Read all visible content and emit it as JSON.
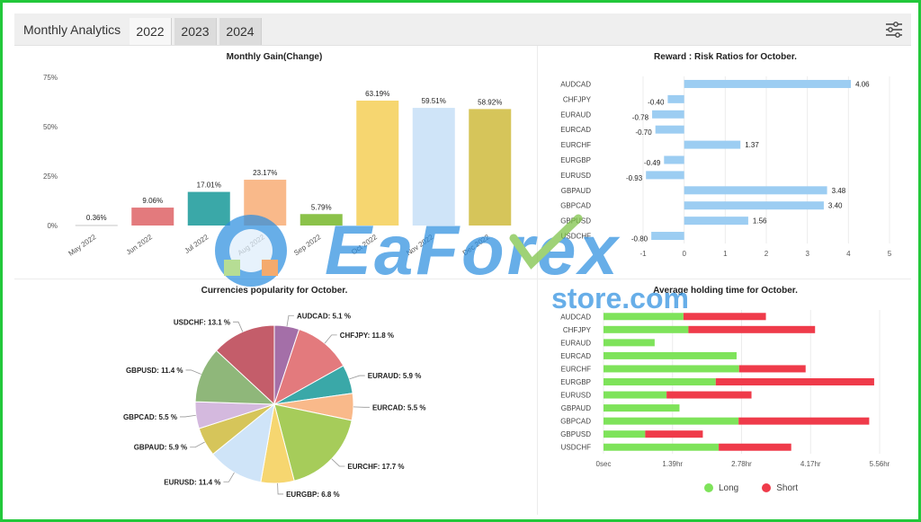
{
  "header": {
    "title": "Monthly Analytics",
    "tabs": [
      {
        "label": "2022",
        "active": true
      },
      {
        "label": "2023",
        "active": false
      },
      {
        "label": "2024",
        "active": false
      }
    ],
    "filter_icon": "sliders-icon"
  },
  "watermark": {
    "brand": "EaForex",
    "sub": "store.com"
  },
  "legend": {
    "long_label": "Long",
    "short_label": "Short",
    "long_color": "#7ee35a",
    "short_color": "#ef3b4a"
  },
  "chart_data": [
    {
      "type": "bar",
      "title": "Monthly Gain(Change)",
      "categories": [
        "May 2022",
        "Jun 2022",
        "Jul 2022",
        "Aug 2022",
        "Sep 2022",
        "Oct 2022",
        "Nov 2022",
        "Dec 2022"
      ],
      "values": [
        0.36,
        9.06,
        17.01,
        23.17,
        5.79,
        63.19,
        59.51,
        58.92
      ],
      "labels": [
        "0.36%",
        "9.06%",
        "17.01%",
        "23.17%",
        "5.79%",
        "63.19%",
        "59.51%",
        "58.92%"
      ],
      "colors": [
        "#d8d8d8",
        "#e37a7d",
        "#3aa8a8",
        "#f9b98a",
        "#8bc24a",
        "#f6d670",
        "#cfe4f8",
        "#d6c55a"
      ],
      "yticks": [
        "0%",
        "25%",
        "50%",
        "75%"
      ],
      "ylim": [
        0,
        75
      ],
      "grid": false
    },
    {
      "type": "bar",
      "orientation": "horizontal",
      "title": "Reward : Risk Ratios for October.",
      "categories": [
        "AUDCAD",
        "CHFJPY",
        "EURAUD",
        "EURCAD",
        "EURCHF",
        "EURGBP",
        "EURUSD",
        "GBPAUD",
        "GBPCAD",
        "GBPUSD",
        "USDCHF"
      ],
      "values": [
        4.06,
        -0.4,
        -0.78,
        -0.7,
        1.37,
        -0.49,
        -0.93,
        3.48,
        3.4,
        1.56,
        -0.8
      ],
      "labels": [
        "4.06",
        "-0.40",
        "-0.78",
        "-0.70",
        "1.37",
        "-0.49",
        "-0.93",
        "3.48",
        "3.40",
        "1.56",
        "-0.80"
      ],
      "color": "#9ccdf2",
      "xticks": [
        "-1",
        "0",
        "1",
        "2",
        "3",
        "4",
        "5"
      ],
      "xlim": [
        -1,
        5
      ],
      "grid": true
    },
    {
      "type": "pie",
      "title": "Currencies popularity for October.",
      "slices": [
        {
          "name": "AUDCAD",
          "value": 5.1,
          "label": "AUDCAD: 5.1 %",
          "color": "#a46fa8"
        },
        {
          "name": "CHFJPY",
          "value": 11.8,
          "label": "CHFJPY: 11.8 %",
          "color": "#e37a7d"
        },
        {
          "name": "EURAUD",
          "value": 5.9,
          "label": "EURAUD: 5.9 %",
          "color": "#3aa8a8"
        },
        {
          "name": "EURCAD",
          "value": 5.5,
          "label": "EURCAD: 5.5 %",
          "color": "#f9b98a"
        },
        {
          "name": "EURCHF",
          "value": 17.7,
          "label": "EURCHF: 17.7 %",
          "color": "#a6cc5a"
        },
        {
          "name": "EURGBP",
          "value": 6.8,
          "label": "EURGBP: 6.8 %",
          "color": "#f6d670"
        },
        {
          "name": "EURUSD",
          "value": 11.4,
          "label": "EURUSD: 11.4 %",
          "color": "#cfe4f8"
        },
        {
          "name": "GBPAUD",
          "value": 5.9,
          "label": "GBPAUD: 5.9 %",
          "color": "#d6c55a"
        },
        {
          "name": "GBPCAD",
          "value": 5.5,
          "label": "GBPCAD: 5.5 %",
          "color": "#d4b9de"
        },
        {
          "name": "GBPUSD",
          "value": 11.4,
          "label": "GBPUSD: 11.4 %",
          "color": "#8fb77a"
        },
        {
          "name": "USDCHF",
          "value": 13.1,
          "label": "USDCHF: 13.1 %",
          "color": "#c45d6a"
        }
      ]
    },
    {
      "type": "bar",
      "orientation": "horizontal",
      "stacked": true,
      "title": "Average holding time for October.",
      "categories": [
        "AUDCAD",
        "CHFJPY",
        "EURAUD",
        "EURCAD",
        "EURCHF",
        "EURGBP",
        "EURUSD",
        "GBPAUD",
        "GBPCAD",
        "GBPUSD",
        "USDCHF"
      ],
      "series": [
        {
          "name": "Long",
          "color": "#7ee35a",
          "values": [
            1.61,
            1.71,
            1.03,
            2.68,
            2.73,
            2.26,
            1.27,
            1.53,
            2.72,
            0.84,
            2.32
          ]
        },
        {
          "name": "Short",
          "color": "#ef3b4a",
          "values": [
            1.66,
            2.55,
            0,
            0,
            1.34,
            3.19,
            1.71,
            0,
            2.63,
            1.16,
            1.46
          ]
        }
      ],
      "xticks": [
        "0sec",
        "1.39hr",
        "2.78hr",
        "4.17hr",
        "5.56hr"
      ],
      "xlim": [
        0,
        5.56
      ],
      "grid": true
    }
  ]
}
